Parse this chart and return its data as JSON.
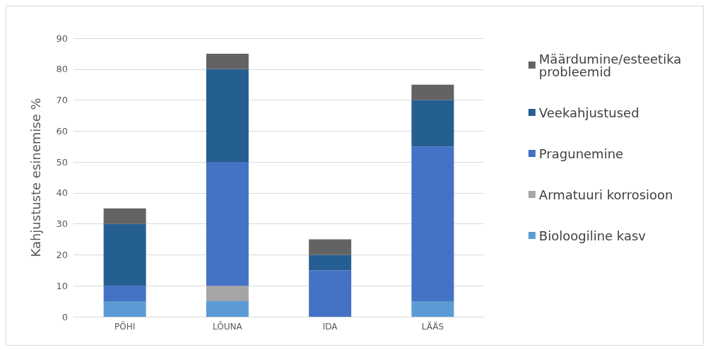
{
  "chart_data": {
    "type": "bar",
    "stacked": true,
    "ylabel": "Kahjustuste esinemise %",
    "categories": [
      "PÕHI",
      "LÕUNA",
      "IDA",
      "LÄÄS"
    ],
    "series": [
      {
        "name": "Bioloogiline kasv",
        "color": "#5b9bd5",
        "values": [
          5,
          5,
          0,
          5
        ]
      },
      {
        "name": "Armatuuri korrosioon",
        "color": "#a5a5a5",
        "values": [
          0,
          5,
          0,
          0
        ]
      },
      {
        "name": "Pragunemine",
        "color": "#4472c4",
        "values": [
          5,
          40,
          15,
          50
        ]
      },
      {
        "name": "Veekahjustused",
        "color": "#255e91",
        "values": [
          20,
          30,
          5,
          15
        ]
      },
      {
        "name": "Määrdumine/esteetika probleemid",
        "color": "#636363",
        "values": [
          5,
          5,
          5,
          5
        ]
      }
    ],
    "ylim": [
      0,
      90
    ],
    "yticks": [
      0,
      10,
      20,
      30,
      40,
      50,
      60,
      70,
      80,
      90
    ],
    "grid": "y",
    "legend": "right"
  }
}
